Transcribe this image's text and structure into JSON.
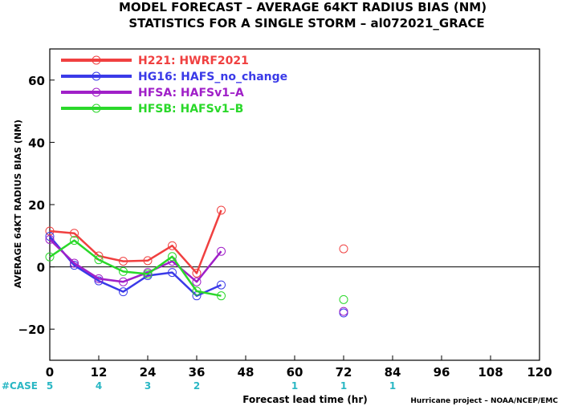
{
  "chart_data": {
    "type": "line",
    "title": "MODEL FORECAST – AVERAGE 64KT RADIUS BIAS (NM)",
    "subtitle": "STATISTICS FOR A SINGLE STORM – al072021_GRACE",
    "xlabel": "Forecast lead time (hr)",
    "ylabel": "AVERAGE 64KT RADIUS BIAS (NM)",
    "xlim": [
      0,
      120
    ],
    "ylim": [
      -30,
      70
    ],
    "x_ticks": [
      "0",
      "12",
      "24",
      "36",
      "48",
      "60",
      "72",
      "84",
      "96",
      "108",
      "120"
    ],
    "y_ticks": [
      "−20",
      "0",
      "20",
      "40",
      "60"
    ],
    "x_tick_values": [
      0,
      12,
      24,
      36,
      48,
      60,
      72,
      84,
      96,
      108,
      120
    ],
    "y_tick_values": [
      -20,
      0,
      20,
      40,
      60
    ],
    "zero_line": true,
    "legend_position": "top-left",
    "cases_label": "#CASE",
    "cases": [
      {
        "x": 0,
        "label": "5"
      },
      {
        "x": 12,
        "label": "4"
      },
      {
        "x": 24,
        "label": "3"
      },
      {
        "x": 36,
        "label": "2"
      },
      {
        "x": 60,
        "label": "1"
      },
      {
        "x": 72,
        "label": "1"
      },
      {
        "x": 84,
        "label": "1"
      }
    ],
    "credit": "Hurricane project – NOAA/NCEP/EMC",
    "series": [
      {
        "name": "H221: HWRF2021",
        "color": "#f04040",
        "points": [
          [
            0,
            11.5
          ],
          [
            6,
            10.8
          ],
          [
            12,
            3.5
          ],
          [
            18,
            1.8
          ],
          [
            24,
            2.0
          ],
          [
            30,
            6.8
          ],
          [
            36,
            -2.0
          ],
          [
            42,
            18.2
          ],
          [
            72,
            5.8
          ]
        ],
        "line_segments": [
          [
            0,
            7
          ]
        ]
      },
      {
        "name": "HG16: HAFS_no_change",
        "color": "#3a3ae8",
        "points": [
          [
            0,
            9.8
          ],
          [
            6,
            0.5
          ],
          [
            12,
            -4.5
          ],
          [
            18,
            -8.0
          ],
          [
            24,
            -2.8
          ],
          [
            30,
            -1.8
          ],
          [
            36,
            -9.3
          ],
          [
            42,
            -5.8
          ],
          [
            72,
            -14.8
          ]
        ],
        "line_segments": [
          [
            0,
            7
          ]
        ]
      },
      {
        "name": "HFSA: HAFSv1–A",
        "color": "#a020c8",
        "points": [
          [
            0,
            8.8
          ],
          [
            6,
            1.2
          ],
          [
            12,
            -3.8
          ],
          [
            18,
            -4.8
          ],
          [
            24,
            -1.8
          ],
          [
            30,
            1.8
          ],
          [
            36,
            -4.8
          ],
          [
            42,
            5.0
          ],
          [
            72,
            -14.3
          ]
        ],
        "line_segments": [
          [
            0,
            7
          ]
        ]
      },
      {
        "name": "HFSB: HAFSv1–B",
        "color": "#2ad82a",
        "points": [
          [
            0,
            3.2
          ],
          [
            6,
            8.5
          ],
          [
            12,
            2.3
          ],
          [
            18,
            -1.5
          ],
          [
            24,
            -2.3
          ],
          [
            30,
            3.3
          ],
          [
            36,
            -7.8
          ],
          [
            42,
            -9.3
          ],
          [
            72,
            -10.5
          ]
        ],
        "line_segments": [
          [
            0,
            7
          ]
        ]
      }
    ]
  }
}
